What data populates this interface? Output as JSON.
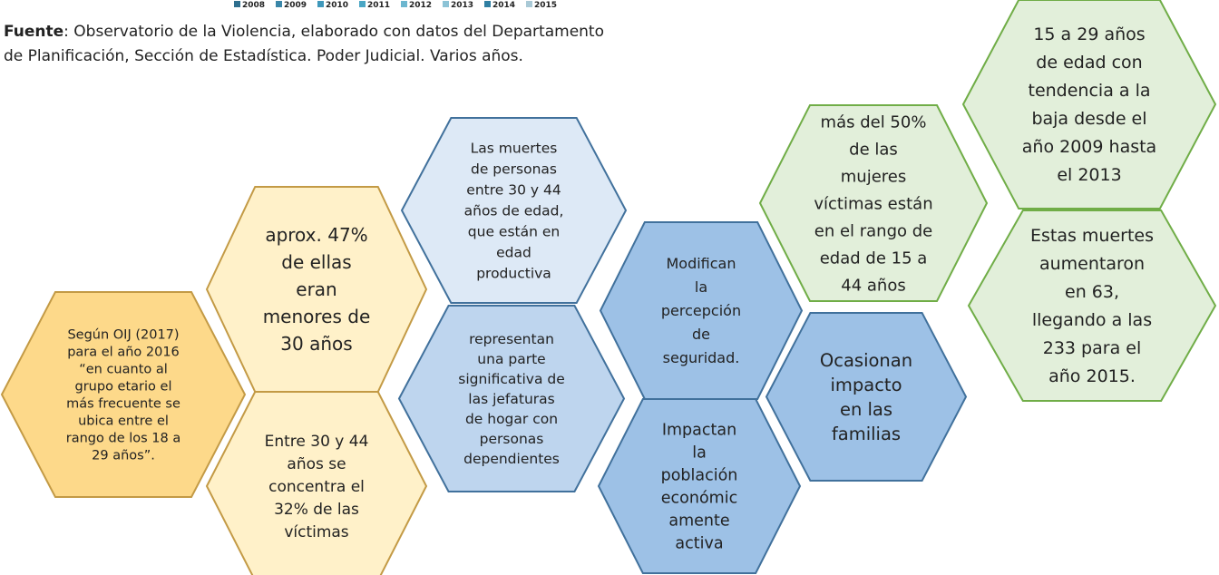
{
  "legend": [
    "2008",
    "2009",
    "2010",
    "2011",
    "2012",
    "2013",
    "2014",
    "2015"
  ],
  "source": {
    "label": "Fuente",
    "lines": [
      ": Observatorio de la Violencia, elaborado con datos del Departamento",
      "de Planificación, Sección de Estadística. Poder Judicial. Varios años."
    ]
  },
  "nodes": [
    {
      "lines": [
        "Según OIJ (2017)",
        "para el año 2016",
        "“en cuanto al",
        "grupo etario el",
        "más frecuente se",
        "ubica entre el",
        "rango de los 18 a",
        "29 años”."
      ]
    },
    {
      "lines": [
        "aprox. 47%",
        "de ellas",
        "eran",
        "menores de",
        "30 años"
      ]
    },
    {
      "lines": [
        "Entre 30 y 44",
        "años se",
        "concentra el",
        "32% de las",
        "víctimas"
      ]
    },
    {
      "lines": [
        "Las muertes",
        "de personas",
        "entre 30 y 44",
        "años de edad,",
        "que están en",
        "edad",
        "productiva"
      ]
    },
    {
      "lines": [
        "representan",
        "una parte",
        "significativa de",
        "las jefaturas",
        "de hogar con",
        "personas",
        "dependientes"
      ]
    },
    {
      "lines": [
        "Modifican",
        "la",
        "percepción",
        "de",
        "seguridad."
      ]
    },
    {
      "lines": [
        "Impactan",
        "la",
        "población",
        "económic",
        "amente",
        "activa"
      ]
    },
    {
      "lines": [
        "Ocasionan",
        "impacto",
        "en las",
        "familias"
      ]
    },
    {
      "lines": [
        "más del 50%",
        "de las",
        "mujeres",
        "víctimas están",
        "en el rango de",
        "edad de 15 a",
        "44 años"
      ]
    },
    {
      "lines": [
        "15 a 29 años",
        "de edad con",
        "tendencia a la",
        "baja desde el",
        "año 2009 hasta",
        "el 2013"
      ]
    },
    {
      "lines": [
        "Estas muertes",
        "aumentaron",
        "en 63,",
        "llegando a las",
        "233 para el",
        "año 2015."
      ]
    }
  ]
}
